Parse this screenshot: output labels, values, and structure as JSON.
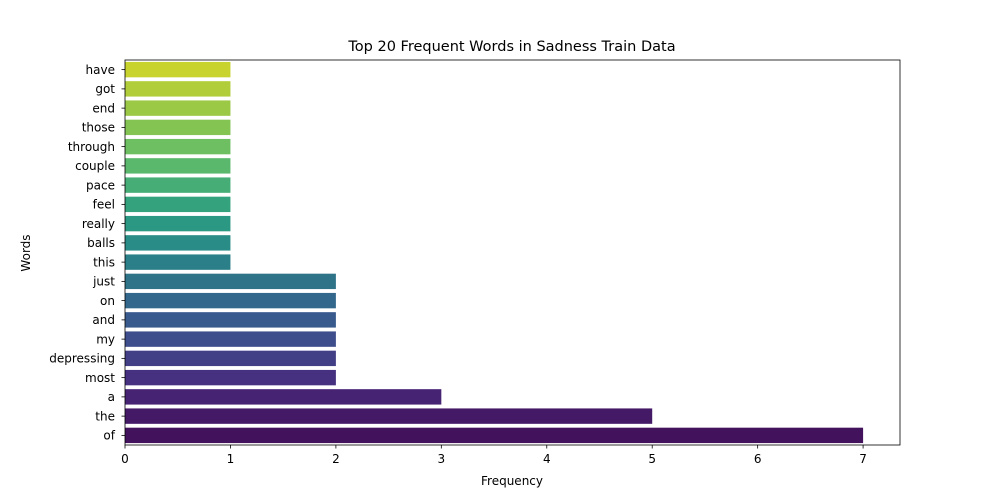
{
  "chart_data": {
    "type": "bar",
    "orientation": "horizontal",
    "title": "Top 20 Frequent Words in Sadness Train Data",
    "xlabel": "Frequency",
    "ylabel": "Words",
    "xlim": [
      0,
      7.35
    ],
    "xticks": [
      0,
      1,
      2,
      3,
      4,
      5,
      6,
      7
    ],
    "grid": false,
    "categories": [
      "have",
      "got",
      "end",
      "those",
      "through",
      "couple",
      "pace",
      "feel",
      "really",
      "balls",
      "this",
      "just",
      "on",
      "and",
      "my",
      "depressing",
      "most",
      "a",
      "the",
      "of"
    ],
    "values": [
      1,
      1,
      1,
      1,
      1,
      1,
      1,
      1,
      1,
      1,
      1,
      2,
      2,
      2,
      2,
      2,
      2,
      3,
      5,
      7
    ],
    "colors": [
      "#c8d32e",
      "#b1cd3a",
      "#9bc845",
      "#84c453",
      "#6dbf62",
      "#5ab86d",
      "#46ad77",
      "#35a27e",
      "#2b9883",
      "#2a8c86",
      "#2b7f88",
      "#2f7389",
      "#33678b",
      "#385a8c",
      "#3e4d8b",
      "#433f87",
      "#453180",
      "#462373",
      "#441966",
      "#42125c"
    ]
  }
}
